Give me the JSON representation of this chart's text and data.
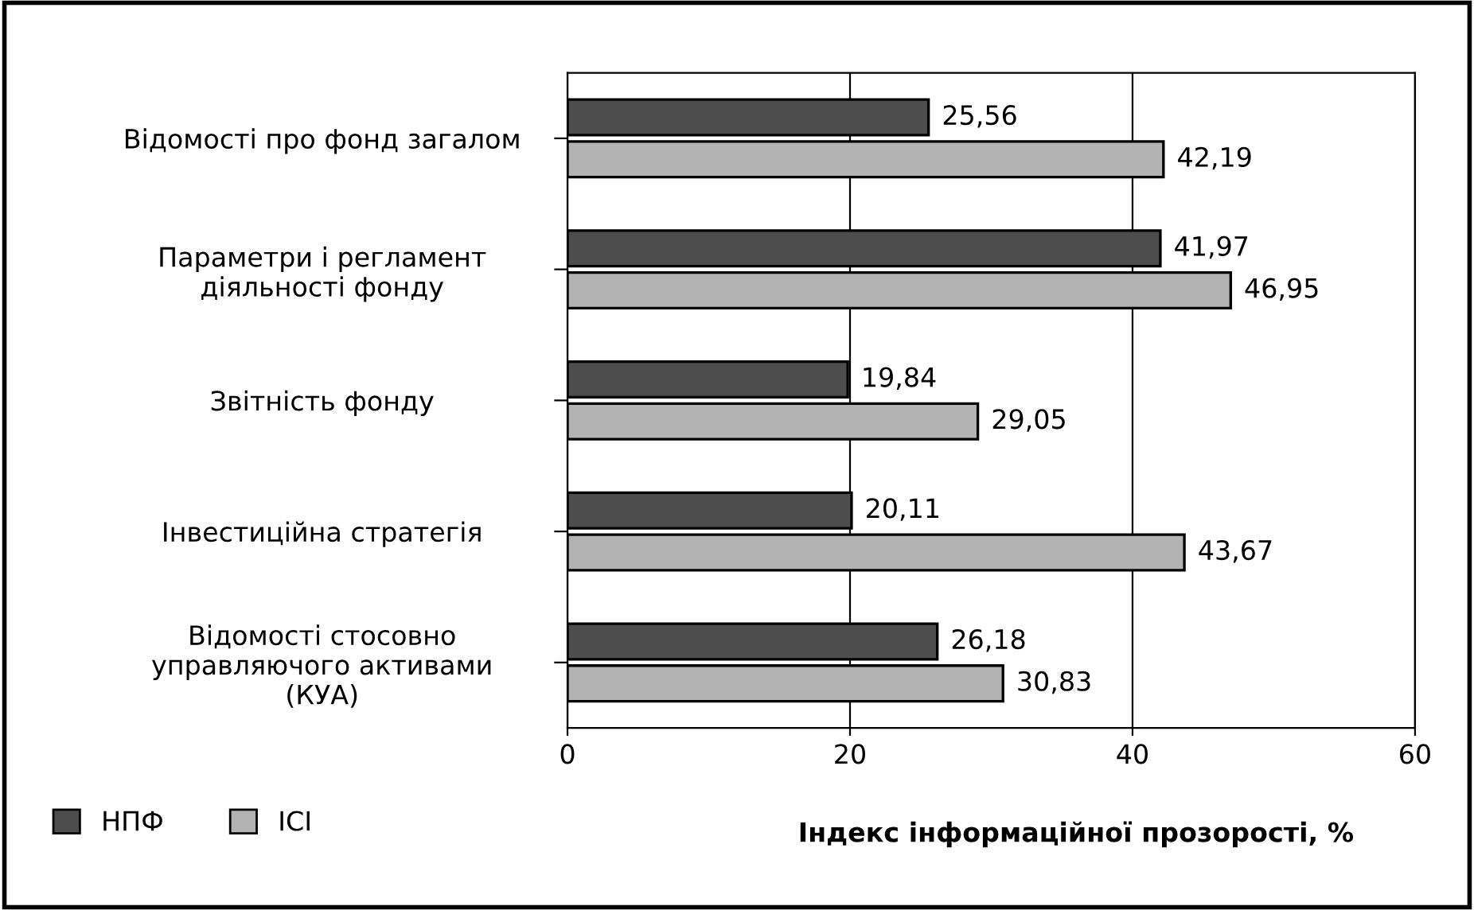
{
  "chart_data": {
    "type": "bar",
    "orientation": "horizontal",
    "categories": [
      "Відомості про фонд загалом",
      "Параметри і регламент\nдіяльності фонду",
      "Звітність фонду",
      "Інвестиційна стратегія",
      "Відомості стосовно\nуправляючого активами\n(КУА)"
    ],
    "series": [
      {
        "name": "НПФ",
        "color": "#4d4d4d",
        "values": [
          25.56,
          41.97,
          19.84,
          20.11,
          26.18
        ],
        "value_labels": [
          "25,56",
          "41,97",
          "19,84",
          "20,11",
          "26,18"
        ]
      },
      {
        "name": "ІСІ",
        "color": "#b3b3b3",
        "values": [
          42.19,
          46.95,
          29.05,
          43.67,
          30.83
        ],
        "value_labels": [
          "42,19",
          "46,95",
          "29,05",
          "43,67",
          "30,83"
        ]
      }
    ],
    "xlabel": "Індекс інформаційної прозорості, %",
    "xlim": [
      0,
      60
    ],
    "xticks": [
      0,
      20,
      40,
      60
    ],
    "grid": "x",
    "legend": "bottom left"
  }
}
